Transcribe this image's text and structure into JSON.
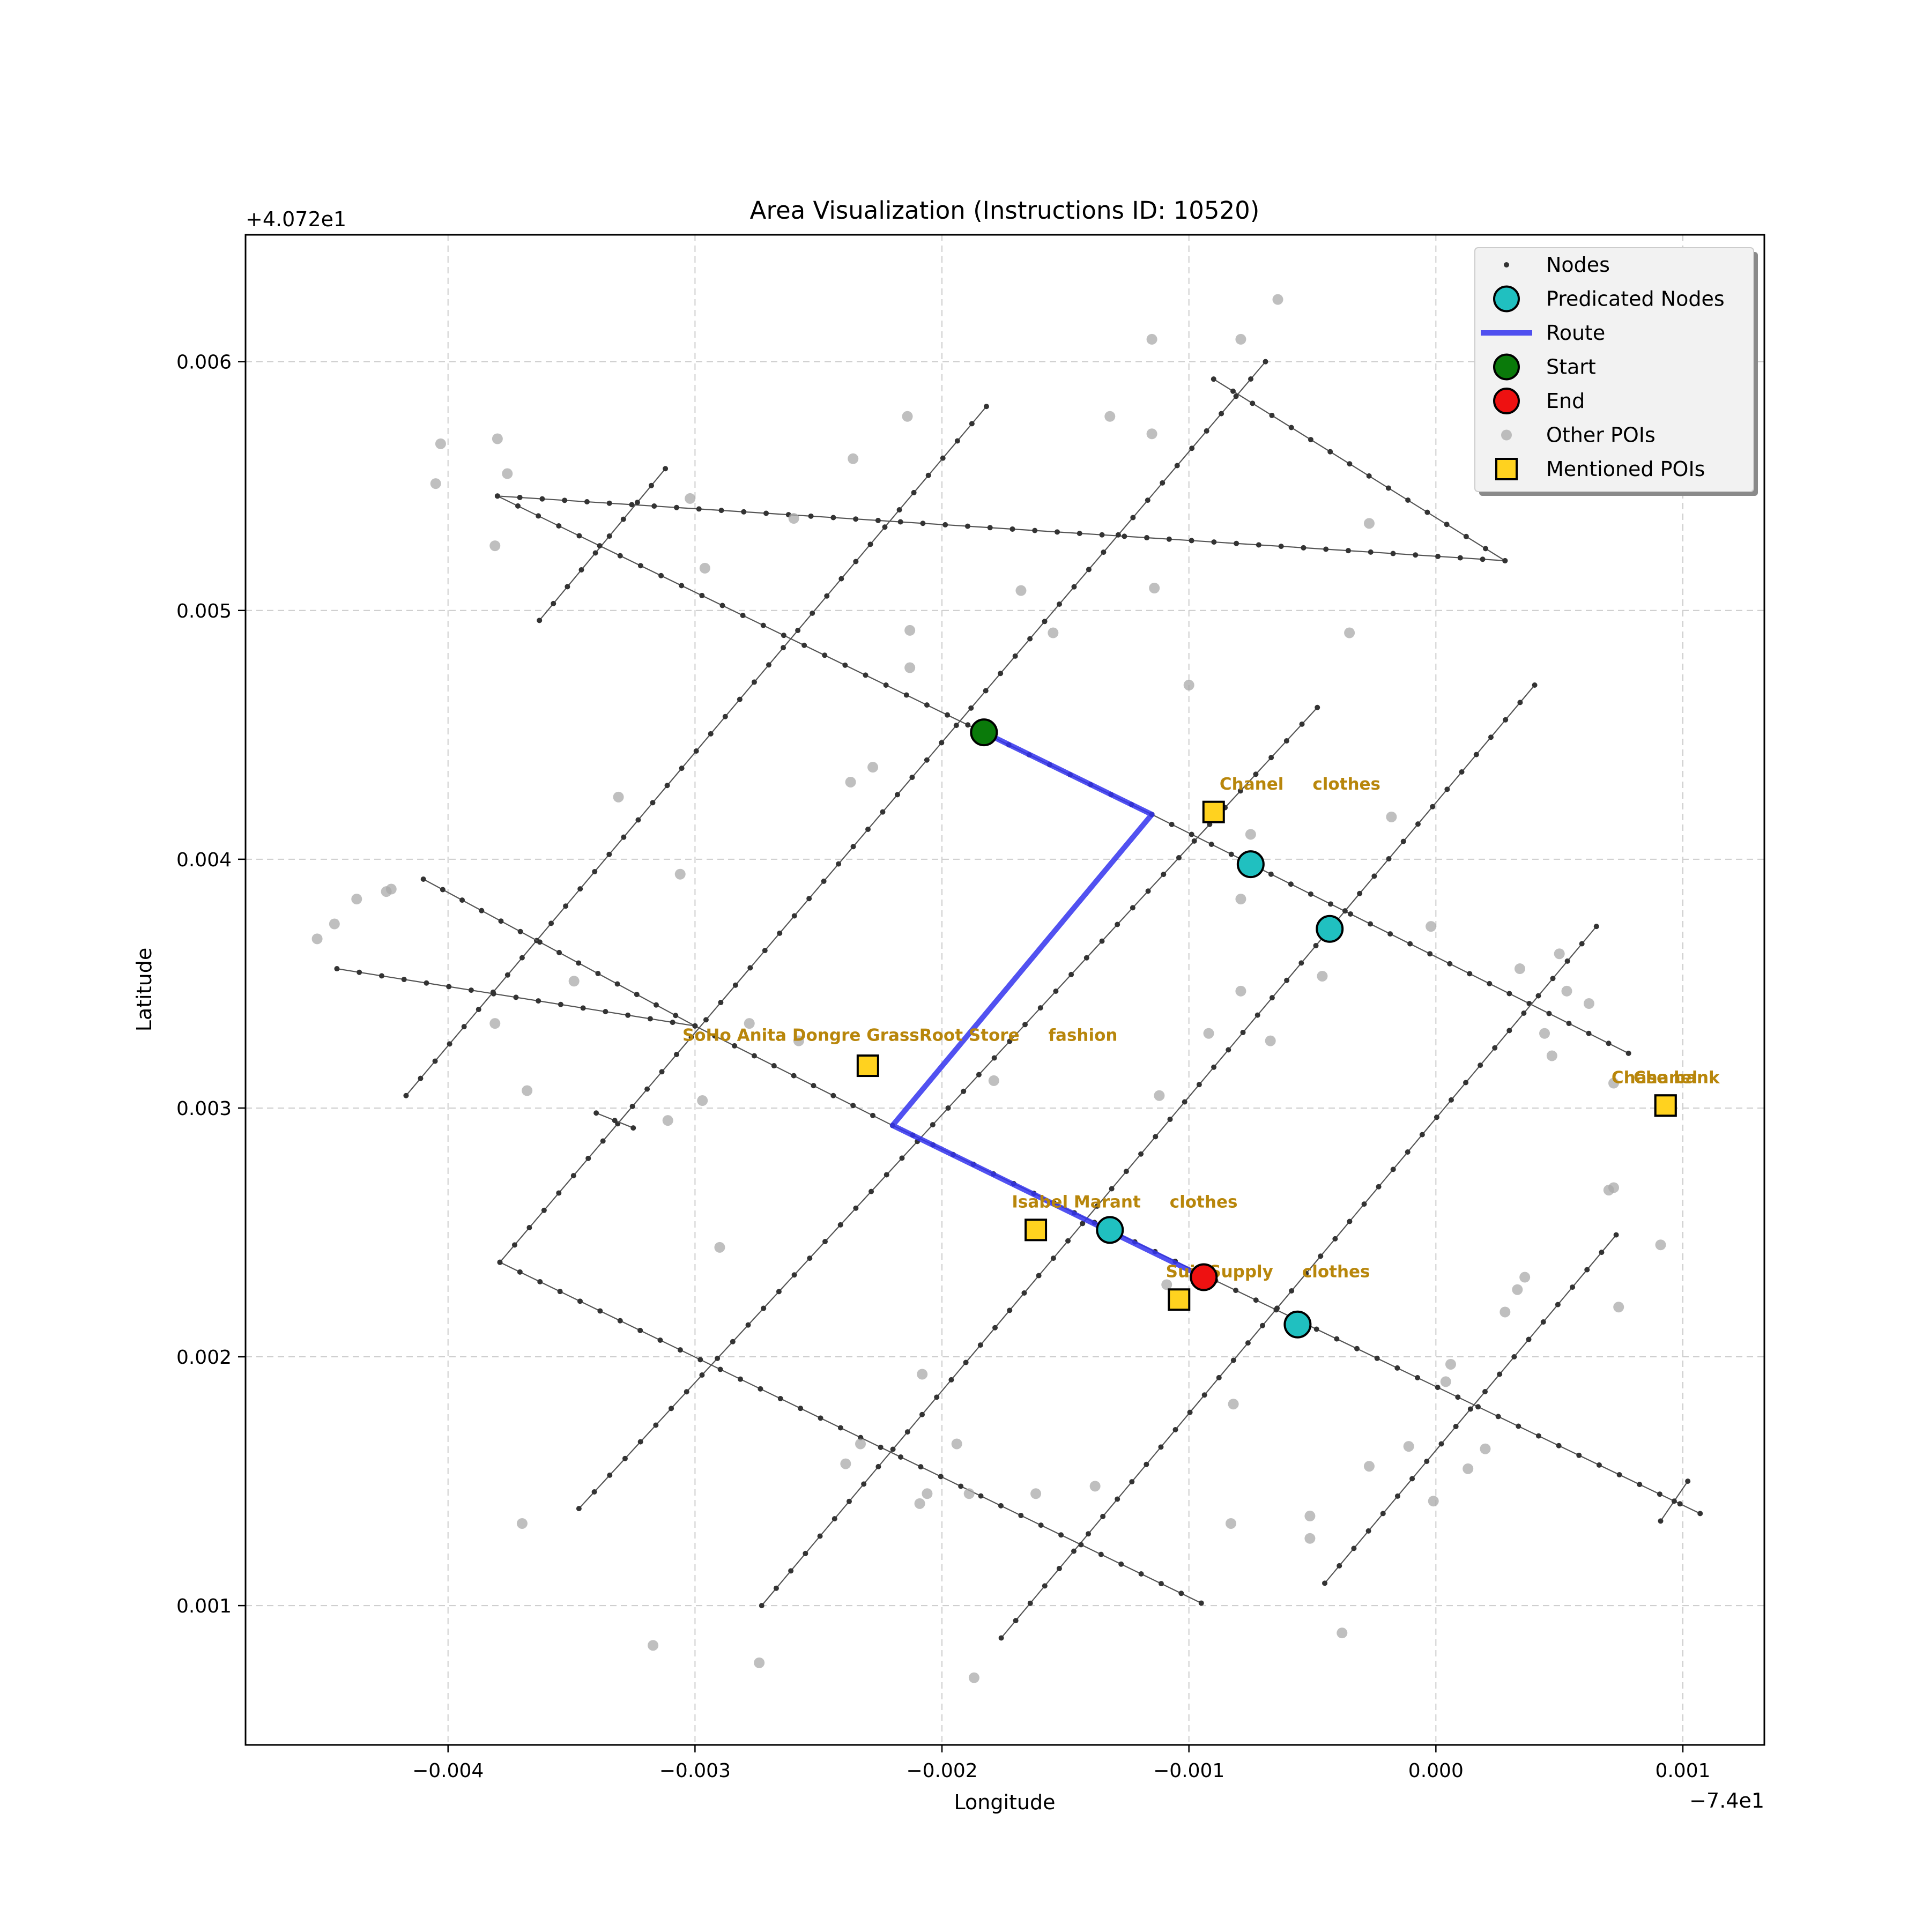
{
  "chart_data": {
    "type": "map",
    "title": "Area Visualization (Instructions ID: 10520)",
    "xlabel": "Longitude",
    "ylabel": "Latitude",
    "x_offset_label": "−7.4e1",
    "y_offset_label": "+4.072e1",
    "xlim": [
      -0.00482,
      0.00133
    ],
    "ylim": [
      0.00044,
      0.00651
    ],
    "x_ticks": [
      -0.004,
      -0.003,
      -0.002,
      -0.001,
      0.0,
      0.001
    ],
    "x_tick_labels": [
      "−0.004",
      "−0.003",
      "−0.002",
      "−0.001",
      "0.000",
      "0.001"
    ],
    "y_ticks": [
      0.001,
      0.002,
      0.003,
      0.004,
      0.005,
      0.006
    ],
    "y_tick_labels": [
      "0.001",
      "0.002",
      "0.003",
      "0.004",
      "0.005",
      "0.006"
    ],
    "grid": true,
    "legend_position": "top-right",
    "legend": [
      {
        "key": "nodes",
        "label": "Nodes"
      },
      {
        "key": "predicated",
        "label": "Predicated Nodes"
      },
      {
        "key": "route",
        "label": "Route"
      },
      {
        "key": "start",
        "label": "Start"
      },
      {
        "key": "end",
        "label": "End"
      },
      {
        "key": "other_pois",
        "label": "Other POIs"
      },
      {
        "key": "mentioned_pois",
        "label": "Mentioned POIs"
      }
    ],
    "colors": {
      "nodes": "#333333",
      "streets": "#555555",
      "predicated": "#20c0c0",
      "route": "#3333ee",
      "start": "#0a7a0a",
      "end": "#ee1111",
      "other_pois": "#a9a9a9",
      "mentioned_pois": "#ffd21f",
      "poi_label": "#b8860b",
      "grid": "#cccccc"
    },
    "streets": [
      [
        [
          -0.0038,
          0.00546
        ],
        [
          0.00028,
          0.0052
        ]
      ],
      [
        [
          -0.00363,
          0.00496
        ],
        [
          -0.00312,
          0.00557
        ]
      ],
      [
        [
          -0.0009,
          0.00593
        ],
        [
          0.00028,
          0.0052
        ]
      ],
      [
        [
          -0.0038,
          0.00546
        ],
        [
          -0.00115,
          0.00418
        ]
      ],
      [
        [
          -0.00115,
          0.00418
        ],
        [
          0.00078,
          0.00322
        ]
      ],
      [
        [
          -0.00417,
          0.00305
        ],
        [
          -0.00182,
          0.00582
        ]
      ],
      [
        [
          -0.00379,
          0.00238
        ],
        [
          -0.00069,
          0.006
        ]
      ],
      [
        [
          -0.00347,
          0.00139
        ],
        [
          -0.00048,
          0.00461
        ]
      ],
      [
        [
          -0.00273,
          0.001
        ],
        [
          0.0004,
          0.0047
        ]
      ],
      [
        [
          -0.00176,
          0.00087
        ],
        [
          0.00065,
          0.00373
        ]
      ],
      [
        [
          -0.00045,
          0.00109
        ],
        [
          0.00073,
          0.00249
        ]
      ],
      [
        [
          -0.0041,
          0.00392
        ],
        [
          -0.003,
          0.00333
        ]
      ],
      [
        [
          -0.00445,
          0.00356
        ],
        [
          -0.003,
          0.00333
        ]
      ],
      [
        [
          -0.003,
          0.00333
        ],
        [
          -0.0022,
          0.00293
        ]
      ],
      [
        [
          -0.0022,
          0.00293
        ],
        [
          0.00107,
          0.00137
        ]
      ],
      [
        [
          -0.00379,
          0.00238
        ],
        [
          -0.00095,
          0.00101
        ]
      ],
      [
        [
          0.00091,
          0.00134
        ],
        [
          0.00102,
          0.0015
        ]
      ],
      [
        [
          -0.0034,
          0.00298
        ],
        [
          -0.00325,
          0.00292
        ]
      ]
    ],
    "other_pois": [
      [
        -0.00403,
        0.00567
      ],
      [
        -0.0038,
        0.00569
      ],
      [
        -0.00405,
        0.00551
      ],
      [
        -0.00376,
        0.00555
      ],
      [
        -0.00381,
        0.00526
      ],
      [
        -0.00302,
        0.00545
      ],
      [
        -0.00296,
        0.00517
      ],
      [
        -0.0026,
        0.00537
      ],
      [
        -0.00236,
        0.00561
      ],
      [
        -0.00214,
        0.00578
      ],
      [
        -0.00115,
        0.00609
      ],
      [
        -0.00079,
        0.00609
      ],
      [
        -0.00064,
        0.00625
      ],
      [
        -0.00132,
        0.00578
      ],
      [
        -0.00115,
        0.00571
      ],
      [
        -0.00168,
        0.00508
      ],
      [
        -0.00114,
        0.00509
      ],
      [
        -0.00155,
        0.00491
      ],
      [
        -0.00213,
        0.00492
      ],
      [
        -0.00213,
        0.00477
      ],
      [
        -0.001,
        0.0047
      ],
      [
        -0.00237,
        0.00431
      ],
      [
        -0.00228,
        0.00437
      ],
      [
        -0.00331,
        0.00425
      ],
      [
        -0.00306,
        0.00394
      ],
      [
        -0.00453,
        0.00368
      ],
      [
        -0.00446,
        0.00374
      ],
      [
        -0.00437,
        0.00384
      ],
      [
        -0.00425,
        0.00387
      ],
      [
        -0.00423,
        0.00388
      ],
      [
        -0.00349,
        0.00351
      ],
      [
        -0.00381,
        0.00334
      ],
      [
        -0.00368,
        0.00307
      ],
      [
        -0.00278,
        0.00334
      ],
      [
        -0.00297,
        0.00303
      ],
      [
        -0.00311,
        0.00295
      ],
      [
        -0.0029,
        0.00244
      ],
      [
        -0.00179,
        0.00311
      ],
      [
        -0.00112,
        0.00305
      ],
      [
        -0.00092,
        0.0033
      ],
      [
        -0.00079,
        0.00347
      ],
      [
        -0.00067,
        0.00327
      ],
      [
        -0.00079,
        0.00384
      ],
      [
        -0.00075,
        0.0041
      ],
      [
        -0.00046,
        0.00353
      ],
      [
        -0.00018,
        0.00417
      ],
      [
        -0.00027,
        0.00535
      ],
      [
        -0.00035,
        0.00491
      ],
      [
        0.0002,
        0.0058
      ],
      [
        -2e-05,
        0.00373
      ],
      [
        0.00034,
        0.00356
      ],
      [
        0.00044,
        0.0033
      ],
      [
        0.0005,
        0.00362
      ],
      [
        0.00053,
        0.00347
      ],
      [
        0.00062,
        0.00342
      ],
      [
        0.00047,
        0.00321
      ],
      [
        0.00072,
        0.0031
      ],
      [
        0.0007,
        0.00267
      ],
      [
        0.00072,
        0.00268
      ],
      [
        0.00074,
        0.0022
      ],
      [
        0.00091,
        0.00245
      ],
      [
        0.00028,
        0.00218
      ],
      [
        0.00033,
        0.00227
      ],
      [
        0.00036,
        0.00232
      ],
      [
        6e-05,
        0.00197
      ],
      [
        4e-05,
        0.0019
      ],
      [
        -1e-05,
        0.00142
      ],
      [
        -0.00011,
        0.00164
      ],
      [
        -0.00027,
        0.00156
      ],
      [
        -0.00051,
        0.00136
      ],
      [
        -0.00051,
        0.00127
      ],
      [
        -0.00038,
        0.00089
      ],
      [
        0.00013,
        0.00155
      ],
      [
        0.0002,
        0.00163
      ],
      [
        -0.00082,
        0.00181
      ],
      [
        -0.00083,
        0.00133
      ],
      [
        -0.00109,
        0.00229
      ],
      [
        -0.00138,
        0.00148
      ],
      [
        -0.00162,
        0.00145
      ],
      [
        -0.00189,
        0.00145
      ],
      [
        -0.00194,
        0.00165
      ],
      [
        -0.00208,
        0.00193
      ],
      [
        -0.00206,
        0.00145
      ],
      [
        -0.00209,
        0.00141
      ],
      [
        -0.00233,
        0.00165
      ],
      [
        -0.00239,
        0.00157
      ],
      [
        -0.00187,
        0.00071
      ],
      [
        -0.00317,
        0.00084
      ],
      [
        -0.00274,
        0.00077
      ],
      [
        -0.0037,
        0.00133
      ],
      [
        -0.00258,
        0.00327
      ]
    ],
    "mentioned_pois": [
      {
        "lon": -0.0009,
        "lat": 0.00419,
        "label": "Chanel     clothes",
        "label_lon": -0.00055,
        "label_lat": 0.00428
      },
      {
        "lon": -0.0023,
        "lat": 0.00317,
        "label": "SoHo Anita Dongre GrassRoot Store     fashion",
        "label_lon": -0.00217,
        "label_lat": 0.00327
      },
      {
        "lon": -0.00162,
        "lat": 0.00251,
        "label": "Isabel Marant     clothes",
        "label_lon": -0.00126,
        "label_lat": 0.0026
      },
      {
        "lon": -0.00104,
        "lat": 0.00223,
        "label": "Suit Supply     clothes",
        "label_lon": -0.00068,
        "label_lat": 0.00232
      },
      {
        "lon": 0.00093,
        "lat": 0.00301,
        "label": "Chase bank",
        "label_lon": 0.00093,
        "label_lat": 0.0031
      },
      {
        "lon": 0.00093,
        "lat": 0.00301,
        "label": "Chanel",
        "label_lon": 0.00093,
        "label_lat": 0.0031
      }
    ],
    "route": [
      [
        -0.00183,
        0.00451
      ],
      [
        -0.00115,
        0.00418
      ],
      [
        -0.0022,
        0.00293
      ],
      [
        -0.00094,
        0.00232
      ]
    ],
    "predicated_nodes": [
      [
        -0.00075,
        0.00398
      ],
      [
        -0.00043,
        0.00372
      ],
      [
        -0.00132,
        0.00251
      ],
      [
        -0.00056,
        0.00213
      ]
    ],
    "start": [
      -0.00183,
      0.00451
    ],
    "end": [
      -0.00094,
      0.00232
    ]
  }
}
